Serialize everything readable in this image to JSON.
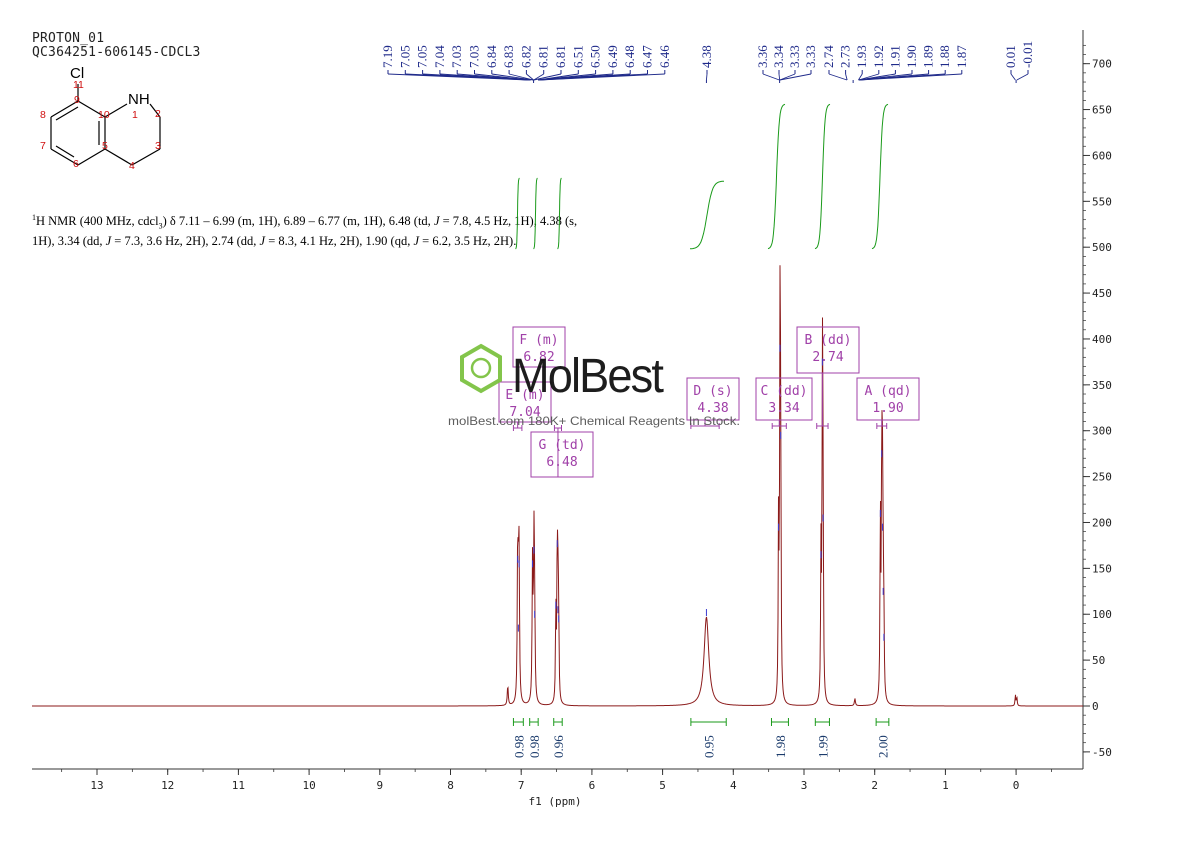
{
  "header": {
    "line1": "PROTON_01",
    "line2": "QC364251-606145-CDCL3"
  },
  "nmr_description": {
    "segments": [
      {
        "t": "sup",
        "v": "1"
      },
      {
        "t": "text",
        "v": "H NMR (400 MHz, cdcl"
      },
      {
        "t": "sub",
        "v": "3"
      },
      {
        "t": "text",
        "v": ") δ 7.11 – 6.99 (m, 1H), 6.89 – 6.77 (m, 1H), 6.48 (td, "
      },
      {
        "t": "i",
        "v": "J"
      },
      {
        "t": "text",
        "v": " = 7.8, 4.5 Hz, 1H), 4.38 (s, 1H), 3.34 (dd, "
      },
      {
        "t": "i",
        "v": "J"
      },
      {
        "t": "text",
        "v": " = 7.3, 3.6 Hz, 2H), 2.74 (dd, "
      },
      {
        "t": "i",
        "v": "J"
      },
      {
        "t": "text",
        "v": " = 8.3, 4.1 Hz, 2H), 1.90 (qd, "
      },
      {
        "t": "i",
        "v": "J"
      },
      {
        "t": "text",
        "v": " = 6.2, 3.5 Hz, 2H)."
      }
    ]
  },
  "molecule": {
    "atoms": {
      "cl": "Cl",
      "nh": "NH"
    },
    "numbers": {
      "n11": "11",
      "n9": "9",
      "n8": "8",
      "n10": "10",
      "n1": "1",
      "n2": "2",
      "n7": "7",
      "n5": "5",
      "n3": "3",
      "n6": "6",
      "n4": "4"
    }
  },
  "watermark": {
    "brand": "MolBest",
    "tagline": "molBest.com 180K+ Chemical Reagents In Stock."
  },
  "colors": {
    "spectrum": "#8b1a1a",
    "peak_labels": "#1f2a8a",
    "integral_curve": "#1a9a1a",
    "integral_text": "#1a3a6b",
    "multiplet_box": "#a040a8",
    "logo_green": "#7dc242",
    "axis": "#333333"
  },
  "chart_data": {
    "type": "line",
    "xlabel": "f1 (ppm)",
    "x_axis": {
      "range": [
        14,
        -1
      ],
      "reversed": true,
      "ticks": [
        13,
        12,
        11,
        10,
        9,
        8,
        7,
        6,
        5,
        4,
        3,
        2,
        1,
        0
      ]
    },
    "y_axis": {
      "range": [
        -60,
        740
      ],
      "side": "right",
      "ticks": [
        -50,
        0,
        50,
        100,
        150,
        200,
        250,
        300,
        350,
        400,
        450,
        500,
        550,
        600,
        650,
        700
      ]
    },
    "peaks": [
      {
        "ppm": 7.19,
        "height": 22,
        "w": 0.008
      },
      {
        "ppm": 7.05,
        "height": 155,
        "w": 0.007
      },
      {
        "ppm": 7.03,
        "height": 150,
        "w": 0.007
      },
      {
        "ppm": 7.04,
        "height": 80,
        "w": 0.007
      },
      {
        "ppm": 6.84,
        "height": 150,
        "w": 0.007
      },
      {
        "ppm": 6.82,
        "height": 165,
        "w": 0.007
      },
      {
        "ppm": 6.81,
        "height": 95,
        "w": 0.007
      },
      {
        "ppm": 6.51,
        "height": 105,
        "w": 0.006
      },
      {
        "ppm": 6.49,
        "height": 172,
        "w": 0.006
      },
      {
        "ppm": 6.48,
        "height": 100,
        "w": 0.006
      },
      {
        "ppm": 6.47,
        "height": 90,
        "w": 0.006
      },
      {
        "ppm": 4.38,
        "height": 97,
        "w": 0.04
      },
      {
        "ppm": 3.36,
        "height": 190,
        "w": 0.006
      },
      {
        "ppm": 3.34,
        "height": 385,
        "w": 0.006
      },
      {
        "ppm": 3.33,
        "height": 290,
        "w": 0.006
      },
      {
        "ppm": 2.74,
        "height": 370,
        "w": 0.006
      },
      {
        "ppm": 2.73,
        "height": 200,
        "w": 0.006
      },
      {
        "ppm": 2.76,
        "height": 160,
        "w": 0.006
      },
      {
        "ppm": 2.28,
        "height": 8,
        "w": 0.008
      },
      {
        "ppm": 1.92,
        "height": 205,
        "w": 0.006
      },
      {
        "ppm": 1.9,
        "height": 270,
        "w": 0.006
      },
      {
        "ppm": 1.89,
        "height": 190,
        "w": 0.006
      },
      {
        "ppm": 1.88,
        "height": 120,
        "w": 0.006
      },
      {
        "ppm": 1.87,
        "height": 70,
        "w": 0.006
      },
      {
        "ppm": 0.01,
        "height": 12,
        "w": 0.006
      },
      {
        "ppm": -0.01,
        "height": 10,
        "w": 0.006
      }
    ],
    "peak_labels": [
      {
        "group": 1,
        "values": [
          "7.19",
          "7.05",
          "7.05",
          "7.04",
          "7.03",
          "7.03",
          "6.84",
          "6.83",
          "6.82",
          "6.81",
          "6.81",
          "6.51",
          "6.50",
          "6.49",
          "6.48",
          "6.47",
          "6.46"
        ]
      },
      {
        "group": 2,
        "values": [
          "4.38"
        ]
      },
      {
        "group": 3,
        "values": [
          "3.36",
          "3.34",
          "3.33",
          "3.33"
        ]
      },
      {
        "group": 4,
        "values": [
          "2.74",
          "2.73",
          "1.93",
          "1.92",
          "1.91",
          "1.90",
          "1.89",
          "1.88",
          "1.87"
        ]
      },
      {
        "group": 5,
        "values": [
          "0.01",
          "-0.01"
        ]
      }
    ],
    "multiplets": [
      {
        "name": "F (m)",
        "shift": "6.82",
        "range": [
          6.77,
          6.89
        ]
      },
      {
        "name": "E (m)",
        "shift": "7.04",
        "range": [
          6.99,
          7.11
        ]
      },
      {
        "name": "G (td)",
        "shift": "6.48",
        "range": [
          6.43,
          6.53
        ]
      },
      {
        "name": "D (s)",
        "shift": "4.38",
        "range": [
          4.2,
          4.6
        ]
      },
      {
        "name": "C (dd)",
        "shift": "3.34",
        "range": [
          3.25,
          3.45
        ]
      },
      {
        "name": "B (dd)",
        "shift": "2.74",
        "range": [
          2.66,
          2.82
        ]
      },
      {
        "name": "A (qd)",
        "shift": "1.90",
        "range": [
          1.83,
          1.97
        ]
      }
    ],
    "integrals": [
      {
        "value": "0.98",
        "range": [
          6.97,
          7.11
        ]
      },
      {
        "value": "0.98",
        "range": [
          6.76,
          6.88
        ]
      },
      {
        "value": "0.96",
        "range": [
          6.42,
          6.54
        ]
      },
      {
        "value": "0.95",
        "range": [
          4.1,
          4.6
        ]
      },
      {
        "value": "1.98",
        "range": [
          3.22,
          3.46
        ]
      },
      {
        "value": "1.99",
        "range": [
          2.64,
          2.84
        ]
      },
      {
        "value": "2.00",
        "range": [
          1.8,
          1.98
        ]
      }
    ]
  }
}
